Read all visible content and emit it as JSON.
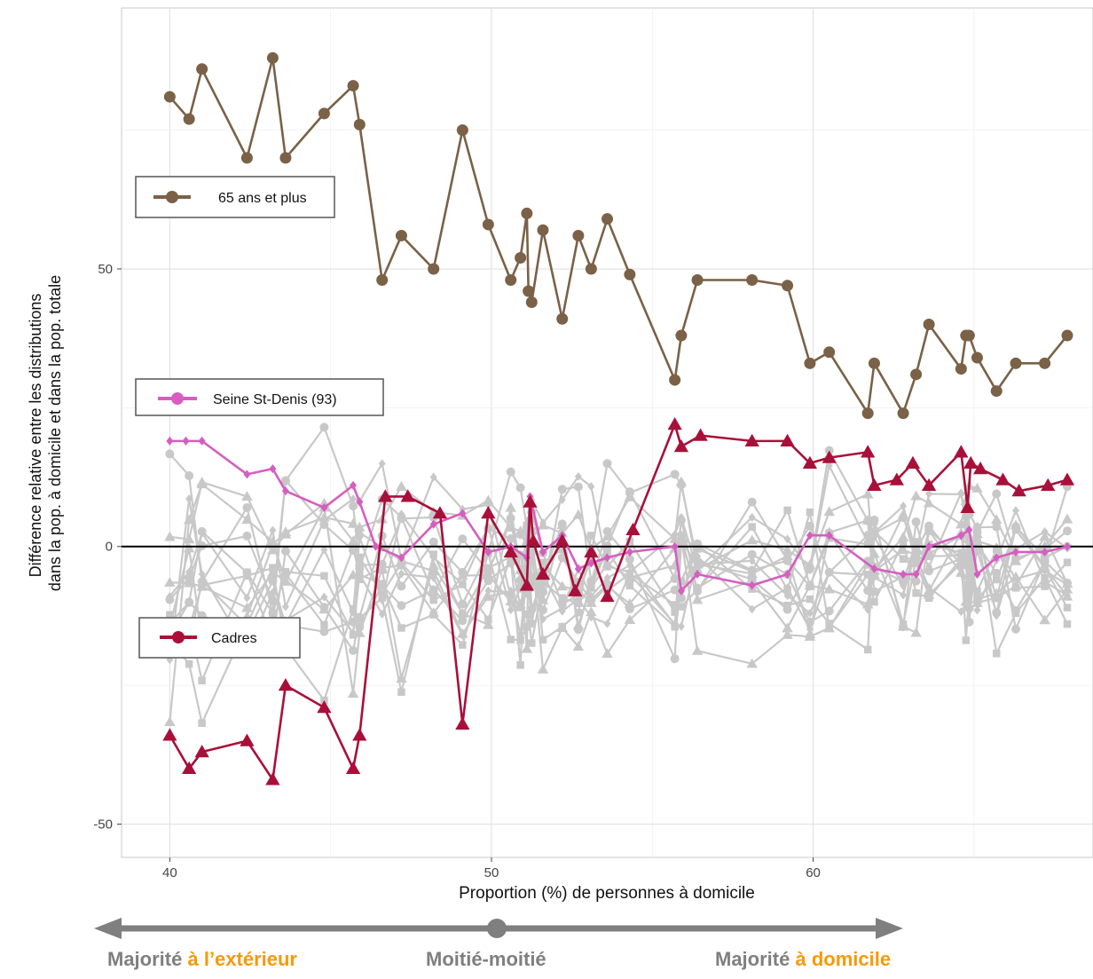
{
  "chart_data": {
    "type": "line",
    "xlabel": "Proportion (%) de personnes à domicile",
    "ylabel": [
      "Différence relative entre les distributions",
      "dans la pop. à domicile et dans la pop. totale"
    ],
    "xlim": [
      38.5,
      68.7
    ],
    "ylim": [
      -56,
      97
    ],
    "x_ticks": [
      40,
      50,
      60
    ],
    "y_ticks": [
      -50,
      0,
      50
    ],
    "grid": true,
    "reference_line_y": 0,
    "colors": {
      "older": "#7a6147",
      "seine": "#d65ec0",
      "cadres": "#a8103a",
      "background_series": "#c8c8c8",
      "zero_line": "#000000",
      "arrow": "#7f7f7f",
      "accent_text": "#f59a0a"
    },
    "series": [
      {
        "name": "65 ans et plus",
        "marker": "circle",
        "color": "#7a6147",
        "points": [
          [
            40,
            81
          ],
          [
            40.6,
            77
          ],
          [
            41,
            86
          ],
          [
            42.4,
            70
          ],
          [
            43.2,
            88
          ],
          [
            43.6,
            70
          ],
          [
            44.8,
            78
          ],
          [
            45.7,
            83
          ],
          [
            45.9,
            76
          ],
          [
            46.6,
            48
          ],
          [
            47.2,
            56
          ],
          [
            48.2,
            50
          ],
          [
            49.1,
            75
          ],
          [
            49.9,
            58
          ],
          [
            50.6,
            48
          ],
          [
            50.9,
            52
          ],
          [
            51.1,
            60
          ],
          [
            51.15,
            46
          ],
          [
            51.25,
            44
          ],
          [
            51.6,
            57
          ],
          [
            52.2,
            41
          ],
          [
            52.7,
            56
          ],
          [
            53.1,
            50
          ],
          [
            53.6,
            59
          ],
          [
            54.3,
            49
          ],
          [
            55.7,
            30
          ],
          [
            55.9,
            38
          ],
          [
            56.4,
            48
          ],
          [
            58.1,
            48
          ],
          [
            59.2,
            47
          ],
          [
            59.9,
            33
          ],
          [
            60.5,
            35
          ],
          [
            61.7,
            24
          ],
          [
            61.9,
            33
          ],
          [
            62.8,
            24
          ],
          [
            63.2,
            31
          ],
          [
            63.6,
            40
          ],
          [
            64.6,
            32
          ],
          [
            64.75,
            38
          ],
          [
            64.85,
            38
          ],
          [
            65.1,
            34
          ],
          [
            65.7,
            28
          ],
          [
            66.3,
            33
          ],
          [
            67.2,
            33
          ],
          [
            67.9,
            38
          ]
        ]
      },
      {
        "name": "Seine St-Denis (93)",
        "marker": "diamond",
        "color": "#d65ec0",
        "points": [
          [
            40,
            19
          ],
          [
            40.5,
            19
          ],
          [
            41,
            19
          ],
          [
            42.4,
            13
          ],
          [
            43.2,
            14
          ],
          [
            43.6,
            10
          ],
          [
            44.8,
            7
          ],
          [
            45.7,
            11
          ],
          [
            45.9,
            8
          ],
          [
            46.4,
            0
          ],
          [
            47.2,
            -2
          ],
          [
            48.2,
            4
          ],
          [
            49.1,
            6
          ],
          [
            49.9,
            -1
          ],
          [
            50.6,
            0
          ],
          [
            51.1,
            -2
          ],
          [
            51.2,
            9
          ],
          [
            51.6,
            -1
          ],
          [
            52.2,
            2
          ],
          [
            52.7,
            -4
          ],
          [
            53.1,
            -3
          ],
          [
            53.6,
            -2
          ],
          [
            54.3,
            -1
          ],
          [
            55.7,
            0
          ],
          [
            55.9,
            -8
          ],
          [
            56.4,
            -5
          ],
          [
            58.1,
            -7
          ],
          [
            59.2,
            -5
          ],
          [
            59.9,
            2
          ],
          [
            60.5,
            2
          ],
          [
            61.9,
            -4
          ],
          [
            62.8,
            -5
          ],
          [
            63.2,
            -5
          ],
          [
            63.6,
            0
          ],
          [
            64.6,
            2
          ],
          [
            64.85,
            3
          ],
          [
            65.1,
            -5
          ],
          [
            65.7,
            -2
          ],
          [
            66.3,
            -1
          ],
          [
            67.2,
            -1
          ],
          [
            67.9,
            0
          ]
        ]
      },
      {
        "name": "Cadres",
        "marker": "triangle",
        "color": "#a8103a",
        "points": [
          [
            40,
            -34
          ],
          [
            40.6,
            -40
          ],
          [
            41,
            -37
          ],
          [
            42.4,
            -35
          ],
          [
            43.2,
            -42
          ],
          [
            43.6,
            -25
          ],
          [
            44.8,
            -29
          ],
          [
            45.7,
            -40
          ],
          [
            45.9,
            -34
          ],
          [
            46.7,
            9
          ],
          [
            47.4,
            9
          ],
          [
            48.4,
            6
          ],
          [
            49.1,
            -32
          ],
          [
            49.9,
            6
          ],
          [
            50.6,
            -1
          ],
          [
            51.1,
            -7
          ],
          [
            51.2,
            8
          ],
          [
            51.3,
            1
          ],
          [
            51.6,
            -5
          ],
          [
            52.2,
            1
          ],
          [
            52.6,
            -8
          ],
          [
            53.1,
            -1
          ],
          [
            53.6,
            -9
          ],
          [
            54.4,
            3
          ],
          [
            55.7,
            22
          ],
          [
            55.9,
            18
          ],
          [
            56.5,
            20
          ],
          [
            58.1,
            19
          ],
          [
            59.2,
            19
          ],
          [
            59.9,
            15
          ],
          [
            60.5,
            16
          ],
          [
            61.7,
            17
          ],
          [
            61.9,
            11
          ],
          [
            62.6,
            12
          ],
          [
            63.1,
            15
          ],
          [
            63.6,
            11
          ],
          [
            64.6,
            17
          ],
          [
            64.8,
            7
          ],
          [
            64.9,
            15
          ],
          [
            65.2,
            14
          ],
          [
            65.9,
            12
          ],
          [
            66.4,
            10
          ],
          [
            67.3,
            11
          ],
          [
            67.9,
            12
          ]
        ]
      }
    ],
    "background_series_count": 14
  },
  "legend": {
    "older_label": "65 ans et plus",
    "seine_label": "Seine St-Denis (93)",
    "cadres_label": "Cadres"
  },
  "bottom": {
    "left_prefix": "Majorité",
    "left_accent": "à l’extérieur",
    "middle": "Moitié-moitié",
    "right_prefix": "Majorité",
    "right_accent": "à domicile"
  }
}
